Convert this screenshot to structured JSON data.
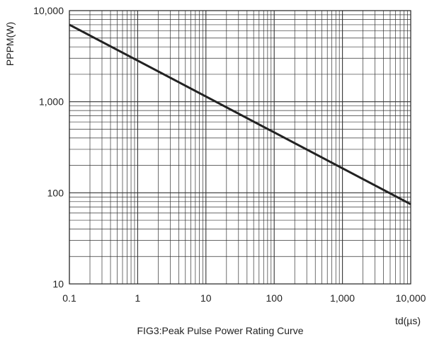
{
  "chart_data": {
    "type": "line",
    "title": "FIG3:Peak Pulse Power Rating Curve",
    "xlabel": "td(µs)",
    "ylabel": "PPPM(W)",
    "xscale": "log",
    "yscale": "log",
    "xlim": [
      0.1,
      10000
    ],
    "ylim": [
      10,
      10000
    ],
    "grid": true,
    "legend": "none",
    "x_ticks": [
      {
        "value": 0.1,
        "label": "0.1"
      },
      {
        "value": 1,
        "label": "1"
      },
      {
        "value": 10,
        "label": "10"
      },
      {
        "value": 100,
        "label": "100"
      },
      {
        "value": 1000,
        "label": "1,000"
      },
      {
        "value": 10000,
        "label": "10,000"
      }
    ],
    "y_ticks": [
      {
        "value": 10,
        "label": "10"
      },
      {
        "value": 100,
        "label": "100"
      },
      {
        "value": 1000,
        "label": "1,000"
      },
      {
        "value": 10000,
        "label": "10,000"
      }
    ],
    "series": [
      {
        "color": "#222222",
        "points": [
          {
            "x": 0.1,
            "y": 7000
          },
          {
            "x": 10000,
            "y": 75
          }
        ]
      }
    ]
  }
}
